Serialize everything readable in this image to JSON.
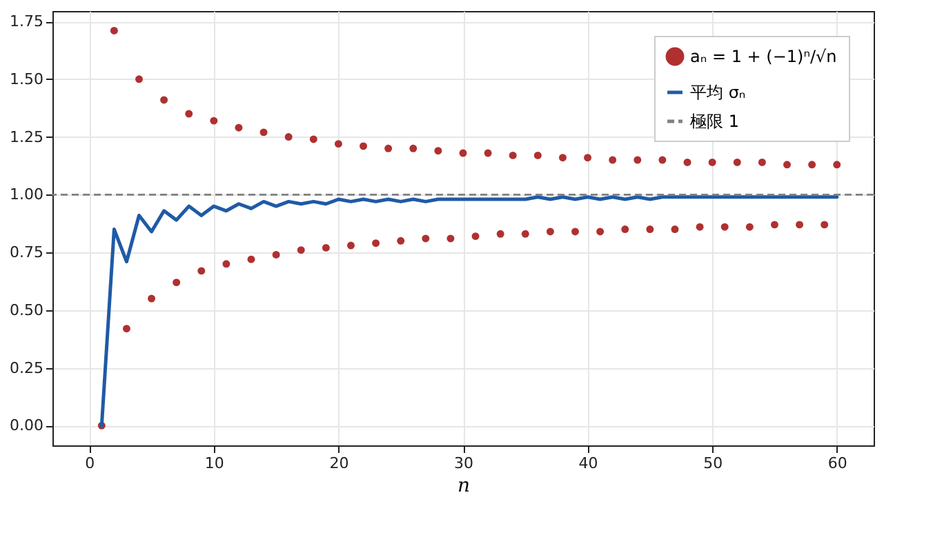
{
  "chart_data": {
    "type": "scatter",
    "xlabel": "n",
    "x": [
      1,
      2,
      3,
      4,
      5,
      6,
      7,
      8,
      9,
      10,
      11,
      12,
      13,
      14,
      15,
      16,
      17,
      18,
      19,
      20,
      21,
      22,
      23,
      24,
      25,
      26,
      27,
      28,
      29,
      30,
      31,
      32,
      33,
      34,
      35,
      36,
      37,
      38,
      39,
      40,
      41,
      42,
      43,
      44,
      45,
      46,
      47,
      48,
      49,
      50,
      51,
      52,
      53,
      54,
      55,
      56,
      57,
      58,
      59,
      60
    ],
    "series": [
      {
        "name": "aₙ = 1 + (−1)ⁿ/√n",
        "color": "#b03030",
        "marker": "circle",
        "values": [
          0,
          1.71,
          0.42,
          1.5,
          0.55,
          1.41,
          0.62,
          1.35,
          0.67,
          1.32,
          0.7,
          1.29,
          0.72,
          1.27,
          0.74,
          1.25,
          0.76,
          1.24,
          0.77,
          1.22,
          0.78,
          1.21,
          0.79,
          1.2,
          0.8,
          1.2,
          0.81,
          1.19,
          0.81,
          1.18,
          0.82,
          1.18,
          0.83,
          1.17,
          0.83,
          1.17,
          0.84,
          1.16,
          0.84,
          1.16,
          0.84,
          1.15,
          0.85,
          1.15,
          0.85,
          1.15,
          0.85,
          1.14,
          0.86,
          1.14,
          0.86,
          1.14,
          0.86,
          1.14,
          0.87,
          1.13,
          0.87,
          1.13,
          0.87,
          1.13
        ]
      },
      {
        "name": "平均 σₙ",
        "type": "line",
        "color": "#1f5aa6",
        "line_style": "solid",
        "values": [
          0,
          0.85,
          0.71,
          0.91,
          0.84,
          0.93,
          0.89,
          0.95,
          0.91,
          0.95,
          0.93,
          0.96,
          0.94,
          0.97,
          0.95,
          0.97,
          0.96,
          0.97,
          0.96,
          0.98,
          0.97,
          0.98,
          0.97,
          0.98,
          0.97,
          0.98,
          0.97,
          0.98,
          0.98,
          0.98,
          0.98,
          0.98,
          0.98,
          0.98,
          0.98,
          0.99,
          0.98,
          0.99,
          0.98,
          0.99,
          0.98,
          0.99,
          0.98,
          0.99,
          0.98,
          0.99,
          0.99,
          0.99,
          0.99,
          0.99,
          0.99,
          0.99,
          0.99,
          0.99,
          0.99,
          0.99,
          0.99,
          0.99,
          0.99,
          0.99
        ]
      }
    ],
    "ref_lines": [
      {
        "axis": "y",
        "value": 1,
        "label": "極限 1",
        "color": "#808080",
        "line_style": "dashed"
      }
    ],
    "xlim": [
      -2.95,
      62.95
    ],
    "xticks": [
      0,
      10,
      20,
      30,
      40,
      50,
      60
    ],
    "ylim": [
      -0.0855,
      1.795
    ],
    "yticks": [
      {
        "value": 0,
        "label": "0.00"
      },
      {
        "value": 0.25,
        "label": "0.25"
      },
      {
        "value": 0.5,
        "label": "0.50"
      },
      {
        "value": 0.75,
        "label": "0.75"
      },
      {
        "value": 1,
        "label": "1.00"
      },
      {
        "value": 1.25,
        "label": "1.25"
      },
      {
        "value": 1.5,
        "label": "1.50"
      },
      {
        "value": 1.75,
        "label": "1.75"
      }
    ],
    "grid": true,
    "legend": "top right"
  }
}
